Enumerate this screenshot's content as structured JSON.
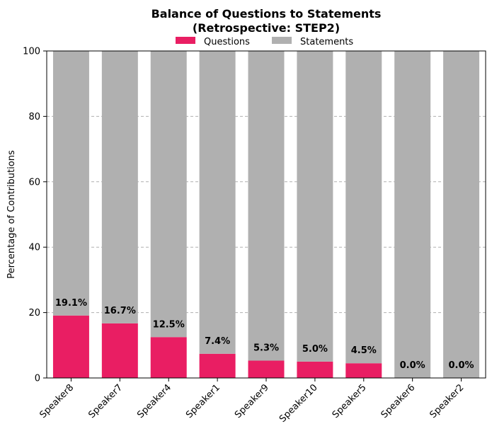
{
  "chart_data": {
    "type": "bar",
    "stacked": true,
    "title_line1": "Balance of Questions to Statements",
    "title_line2": "(Retrospective: STEP2)",
    "xlabel": "",
    "ylabel": "Percentage of Contributions",
    "ylim": [
      0,
      100
    ],
    "yticks": [
      0,
      20,
      40,
      60,
      80,
      100
    ],
    "grid": "y-dashed",
    "legend_position": "top-center",
    "categories": [
      "Speaker8",
      "Speaker7",
      "Speaker4",
      "Speaker1",
      "Speaker9",
      "Speaker10",
      "Speaker5",
      "Speaker6",
      "Speaker2"
    ],
    "series": [
      {
        "name": "Questions",
        "color": "#e91e63",
        "values": [
          19.1,
          16.7,
          12.5,
          7.4,
          5.3,
          5.0,
          4.5,
          0.0,
          0.0
        ],
        "labels": [
          "19.1%",
          "16.7%",
          "12.5%",
          "7.4%",
          "5.3%",
          "5.0%",
          "4.5%",
          "0.0%",
          "0.0%"
        ]
      },
      {
        "name": "Statements",
        "color": "#b0b0b0",
        "values": [
          80.9,
          83.3,
          87.5,
          92.6,
          94.7,
          95.0,
          95.5,
          100.0,
          100.0
        ]
      }
    ]
  }
}
